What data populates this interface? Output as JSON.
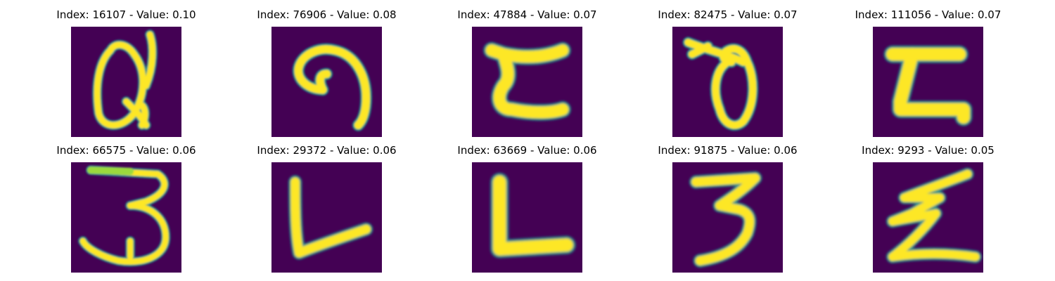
{
  "colors": {
    "background": "#ffffff",
    "text": "#000000",
    "viridis_low": "#440154",
    "viridis_mid": "#21918c",
    "viridis_high": "#fde725"
  },
  "panels": [
    {
      "title": "Index: 16107 - Value: 0.10",
      "glyph": "Q"
    },
    {
      "title": "Index: 76906 - Value: 0.08",
      "glyph": "9"
    },
    {
      "title": "Index: 47884 - Value: 0.07",
      "glyph": "Z"
    },
    {
      "title": "Index: 82475 - Value: 0.07",
      "glyph": "theta"
    },
    {
      "title": "Index: 111056 - Value: 0.07",
      "glyph": "Z"
    },
    {
      "title": "Index: 66575 - Value: 0.06",
      "glyph": "3"
    },
    {
      "title": "Index: 29372 - Value: 0.06",
      "glyph": "L"
    },
    {
      "title": "Index: 63669 - Value: 0.06",
      "glyph": "L"
    },
    {
      "title": "Index: 91875 - Value: 0.06",
      "glyph": "3"
    },
    {
      "title": "Index: 9293 - Value: 0.05",
      "glyph": "Z"
    }
  ]
}
